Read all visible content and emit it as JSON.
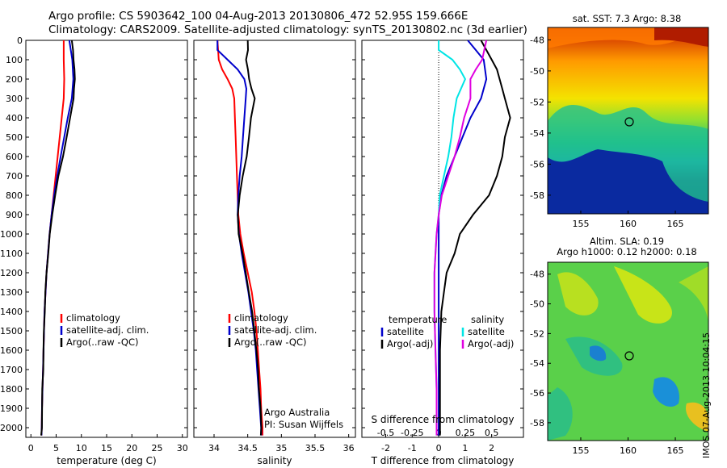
{
  "header": {
    "line1": "Argo profile: CS 5903642_100 04-Aug-2013 20130806_472 52.95S 159.666E",
    "line2": "Climatology: CARS2009. Satellite-adjusted climatology: synTS_20130802.nc (3d earlier)"
  },
  "depth_ticks": [
    "0",
    "100",
    "200",
    "300",
    "400",
    "500",
    "600",
    "700",
    "800",
    "900",
    "1000",
    "1100",
    "1200",
    "1300",
    "1400",
    "1500",
    "1600",
    "1700",
    "1800",
    "1900",
    "2000"
  ],
  "colors": {
    "climatology": "#ff0000",
    "satellite": "#0000cc",
    "argo": "#000000",
    "sal_sat": "#00e5e5",
    "sal_argo": "#e000e0"
  },
  "chart_data": [
    {
      "type": "line",
      "panel": "temperature",
      "xlabel": "temperature (deg C)",
      "xlim": [
        -1,
        31
      ],
      "ylim": [
        2050,
        0
      ],
      "xticks": [
        "0",
        "5",
        "10",
        "15",
        "20",
        "25",
        "30"
      ],
      "legend": [
        "climatology",
        "satellite-adj. clim.",
        "Argo(..raw -QC)"
      ],
      "series": [
        {
          "name": "climatology",
          "depth": [
            0,
            100,
            200,
            300,
            400,
            500,
            600,
            700,
            800,
            900,
            1000,
            1100,
            1200,
            1300,
            1400,
            1500,
            1600,
            1700,
            1800,
            1900,
            2000,
            2040
          ],
          "values": [
            6.5,
            6.5,
            6.6,
            6.5,
            6.1,
            5.7,
            5.3,
            4.9,
            4.5,
            4.1,
            3.7,
            3.4,
            3.1,
            2.9,
            2.7,
            2.6,
            2.5,
            2.4,
            2.3,
            2.2,
            2.15,
            2.1
          ]
        },
        {
          "name": "satellite-adj. clim.",
          "depth": [
            0,
            100,
            200,
            300,
            400,
            500,
            600,
            700,
            800,
            900,
            1000,
            1100,
            1200,
            1300,
            1400,
            1500,
            1600,
            1700,
            1800,
            1900,
            2000,
            2040
          ],
          "values": [
            7.6,
            8.2,
            8.4,
            8.1,
            7.3,
            6.6,
            5.9,
            5.2,
            4.6,
            4.1,
            3.7,
            3.4,
            3.1,
            2.9,
            2.7,
            2.6,
            2.5,
            2.4,
            2.3,
            2.2,
            2.15,
            2.1
          ]
        },
        {
          "name": "Argo(..raw -QC)",
          "depth": [
            0,
            50,
            100,
            150,
            200,
            250,
            300,
            400,
            500,
            600,
            700,
            800,
            900,
            1000,
            1100,
            1200,
            1300,
            1400,
            1500,
            1600,
            1700,
            1800,
            1900,
            2000,
            2040
          ],
          "values": [
            8.1,
            8.3,
            8.5,
            8.6,
            8.7,
            8.6,
            8.4,
            7.8,
            7.1,
            6.3,
            5.5,
            4.8,
            4.2,
            3.8,
            3.4,
            3.1,
            2.9,
            2.7,
            2.6,
            2.5,
            2.4,
            2.3,
            2.2,
            2.15,
            2.1
          ]
        }
      ]
    },
    {
      "type": "line",
      "panel": "salinity",
      "xlabel": "salinity",
      "xlim": [
        33.7,
        36.1
      ],
      "ylim": [
        2050,
        0
      ],
      "xticks": [
        "34",
        "34.5",
        "35",
        "35.5",
        "36"
      ],
      "legend": [
        "climatology",
        "satellite-adj. clim.",
        "Argo(..raw -QC)"
      ],
      "annotation": [
        "Argo Australia",
        "PI: Susan Wijffels"
      ],
      "series": [
        {
          "name": "climatology",
          "depth": [
            0,
            100,
            150,
            200,
            250,
            300,
            400,
            500,
            600,
            700,
            800,
            900,
            1000,
            1100,
            1200,
            1300,
            1400,
            1500,
            1600,
            1700,
            1800,
            1900,
            2000,
            2040
          ],
          "values": [
            34.05,
            34.07,
            34.12,
            34.2,
            34.27,
            34.3,
            34.31,
            34.32,
            34.33,
            34.34,
            34.35,
            34.36,
            34.39,
            34.44,
            34.5,
            34.56,
            34.6,
            34.63,
            34.65,
            34.67,
            34.69,
            34.7,
            34.72,
            34.72
          ]
        },
        {
          "name": "satellite-adj. clim.",
          "depth": [
            0,
            50,
            100,
            150,
            200,
            250,
            300,
            400,
            500,
            600,
            700,
            800,
            900,
            1000,
            1100,
            1200,
            1300,
            1400,
            1500,
            1600,
            1700,
            1800,
            1900,
            2000,
            2040
          ],
          "values": [
            34.05,
            34.05,
            34.2,
            34.35,
            34.45,
            34.48,
            34.47,
            34.45,
            34.43,
            34.41,
            34.38,
            34.36,
            34.35,
            34.37,
            34.41,
            34.46,
            34.51,
            34.55,
            34.59,
            34.62,
            34.64,
            34.66,
            34.68,
            34.7,
            34.7
          ]
        },
        {
          "name": "Argo(..raw -QC)",
          "depth": [
            0,
            50,
            100,
            150,
            200,
            250,
            300,
            400,
            500,
            600,
            700,
            800,
            900,
            1000,
            1100,
            1200,
            1300,
            1400,
            1500,
            1600,
            1700,
            1800,
            1900,
            2000,
            2040
          ],
          "values": [
            34.5,
            34.5,
            34.48,
            34.5,
            34.52,
            34.56,
            34.6,
            34.55,
            34.52,
            34.48,
            34.43,
            34.38,
            34.35,
            34.37,
            34.42,
            34.47,
            34.52,
            34.56,
            34.6,
            34.63,
            34.65,
            34.67,
            34.69,
            34.7,
            34.7
          ]
        }
      ]
    },
    {
      "type": "line",
      "panel": "difference",
      "xlabel": "T difference from climatology",
      "xlabel2": "S difference from climatology",
      "xlim": [
        -2.9,
        3.2
      ],
      "ylim": [
        2050,
        0
      ],
      "xticks": [
        "-2",
        "-1",
        "0",
        "1",
        "2"
      ],
      "xticks_s": [
        "-0.5",
        "-0.25",
        "0",
        "0.25",
        "0.5"
      ],
      "legend_t_title": "temperature",
      "legend_s_title": "salinity",
      "legend": [
        "satellite",
        "Argo(-adj)",
        "satellite",
        "Argo(-adj)"
      ],
      "series": [
        {
          "name": "temperature satellite",
          "depth": [
            0,
            50,
            100,
            200,
            300,
            400,
            500,
            600,
            700,
            800,
            900,
            1000,
            1200,
            1400,
            1600,
            1800,
            2000,
            2040
          ],
          "values": [
            1.1,
            1.4,
            1.7,
            1.8,
            1.6,
            1.2,
            0.9,
            0.6,
            0.3,
            0.1,
            0.0,
            0.0,
            0.0,
            0.0,
            0.0,
            0.0,
            0.0,
            0.0
          ]
        },
        {
          "name": "temperature Argo(-adj)",
          "depth": [
            0,
            50,
            100,
            150,
            200,
            250,
            300,
            350,
            400,
            450,
            500,
            600,
            700,
            800,
            900,
            1000,
            1100,
            1200,
            1300,
            1400,
            1600,
            1800,
            2000,
            2040
          ],
          "values": [
            1.6,
            1.8,
            2.0,
            2.2,
            2.3,
            2.4,
            2.5,
            2.6,
            2.7,
            2.6,
            2.5,
            2.4,
            2.2,
            1.9,
            1.3,
            0.8,
            0.6,
            0.3,
            0.2,
            0.1,
            0.05,
            0.05,
            0.05,
            0.05
          ]
        },
        {
          "name": "salinity satellite",
          "depth": [
            0,
            50,
            100,
            150,
            200,
            300,
            400,
            500,
            600,
            700,
            800,
            900,
            1000,
            1200,
            1400,
            1600,
            1800,
            2000,
            2040
          ],
          "values": [
            0.0,
            0.0,
            0.13,
            0.2,
            0.25,
            0.17,
            0.14,
            0.12,
            0.09,
            0.05,
            0.01,
            0.0,
            -0.02,
            -0.04,
            -0.04,
            -0.03,
            -0.02,
            -0.02,
            -0.02
          ]
        },
        {
          "name": "salinity Argo(-adj)",
          "depth": [
            0,
            50,
            100,
            150,
            200,
            300,
            400,
            500,
            600,
            700,
            800,
            900,
            1000,
            1200,
            1400,
            1600,
            1800,
            2000,
            2040
          ],
          "values": [
            0.45,
            0.43,
            0.41,
            0.35,
            0.3,
            0.3,
            0.24,
            0.2,
            0.15,
            0.09,
            0.03,
            0.0,
            -0.02,
            -0.04,
            -0.04,
            -0.03,
            -0.02,
            -0.02,
            -0.02
          ]
        }
      ]
    },
    {
      "type": "heatmap",
      "panel": "sst_map",
      "title": "sat. SST: 7.3 Argo: 8.38",
      "xlim": [
        151.5,
        168.5
      ],
      "ylim": [
        -59.2,
        -47.2
      ],
      "xticks": [
        "155",
        "160",
        "165"
      ],
      "yticks": [
        "-48",
        "-50",
        "-52",
        "-54",
        "-56",
        "-58"
      ],
      "marker": {
        "lon": 159.666,
        "lat": -52.95
      }
    },
    {
      "type": "heatmap",
      "panel": "sla_map",
      "title": "Altim. SLA: 0.19",
      "subtitle": "Argo h1000: 0.12 h2000: 0.18",
      "xlim": [
        151.5,
        168.5
      ],
      "ylim": [
        -59.2,
        -47.2
      ],
      "xticks": [
        "155",
        "160",
        "165"
      ],
      "yticks": [
        "-48",
        "-50",
        "-52",
        "-54",
        "-56",
        "-58"
      ],
      "marker": {
        "lon": 159.666,
        "lat": -52.95
      }
    }
  ],
  "stamp": "IMOS 07-Aug-2013 10:04:15"
}
